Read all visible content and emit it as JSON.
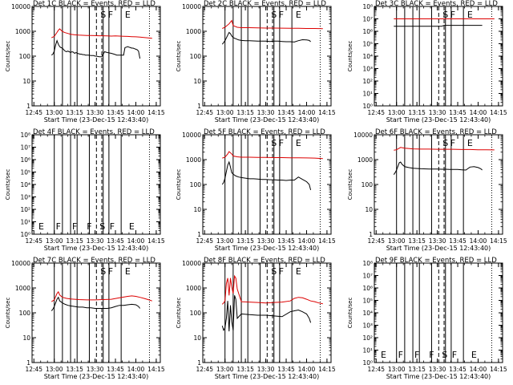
{
  "figure": {
    "xlabel": "Start Time (23-Dec-15 12:43:40)",
    "xticks": [
      "12:45",
      "13:00",
      "13:15",
      "13:30",
      "13:45",
      "14:00",
      "14:15"
    ],
    "ylabel": "Counts/sec"
  },
  "colors": {
    "events": "#000000",
    "lld": "#dd0000",
    "axes": "#000000"
  },
  "chart_data": [
    {
      "type": "line",
      "title": "Det 1C BLACK = Events, RED = LLD",
      "ylabel": "Counts/sec",
      "yscale": "log",
      "ylim": [
        1,
        10000
      ],
      "yticks": [
        "1",
        "10",
        "100",
        "1000",
        "10000"
      ],
      "letters": [
        "S",
        "F",
        "E"
      ],
      "series": [
        {
          "color": "#000000",
          "x": [
            12.967,
            12.983,
            13.0,
            13.017,
            13.033,
            13.05,
            13.067,
            13.083,
            13.1,
            13.117,
            13.133,
            13.15,
            13.167,
            13.183,
            13.2,
            13.217,
            13.233,
            13.25,
            13.267,
            13.283,
            13.3,
            13.317,
            13.333,
            13.35,
            13.367,
            13.383,
            13.417,
            13.45,
            13.483,
            13.5,
            13.517,
            13.55,
            13.583,
            13.617,
            13.65,
            13.7,
            13.733,
            13.767,
            13.8,
            13.833,
            13.85,
            13.867,
            13.883,
            13.9,
            13.917,
            13.933,
            13.95,
            13.967,
            13.983,
            14.0,
            14.017,
            14.033,
            14.05
          ],
          "values": [
            110,
            120,
            160,
            280,
            420,
            300,
            240,
            220,
            210,
            180,
            160,
            150,
            160,
            150,
            140,
            150,
            145,
            130,
            140,
            130,
            125,
            120,
            120,
            115,
            115,
            110,
            110,
            105,
            105,
            100,
            100,
            95,
            95,
            150,
            140,
            130,
            120,
            110,
            110,
            110,
            110,
            220,
            230,
            240,
            230,
            220,
            210,
            210,
            200,
            190,
            180,
            160,
            80
          ]
        },
        {
          "color": "#dd0000",
          "x": [
            12.967,
            13.0,
            13.033,
            13.05,
            13.067,
            13.1,
            13.133,
            13.167,
            13.2,
            13.25,
            13.3,
            13.35,
            13.4,
            13.45,
            13.5,
            13.55,
            13.6,
            13.65,
            13.7,
            13.75,
            13.8,
            13.85,
            13.9,
            13.95,
            14.0,
            14.05,
            14.1,
            14.15,
            14.2
          ],
          "values": [
            550,
            620,
            900,
            1100,
            1250,
            980,
            880,
            820,
            760,
            720,
            700,
            690,
            680,
            680,
            670,
            660,
            660,
            650,
            640,
            650,
            640,
            630,
            620,
            610,
            600,
            580,
            560,
            540,
            520
          ]
        }
      ]
    },
    {
      "type": "line",
      "title": "Det 2C BLACK = Events, RED = LLD",
      "ylabel": "Counts/sec",
      "yscale": "log",
      "ylim": [
        1,
        10000
      ],
      "yticks": [
        "1",
        "10",
        "100",
        "1000",
        "10000"
      ],
      "letters": [
        "S",
        "F",
        "E"
      ],
      "series": [
        {
          "color": "#000000",
          "x": [
            12.967,
            12.983,
            13.0,
            13.033,
            13.05,
            13.067,
            13.083,
            13.1,
            13.133,
            13.167,
            13.2,
            13.25,
            13.3,
            13.35,
            13.4,
            13.45,
            13.5,
            13.55,
            13.6,
            13.65,
            13.7,
            13.75,
            13.8,
            13.85,
            13.9,
            13.95,
            14.0,
            14.033,
            14.05
          ],
          "values": [
            300,
            350,
            420,
            700,
            900,
            800,
            650,
            550,
            500,
            450,
            430,
            420,
            420,
            410,
            400,
            400,
            400,
            390,
            400,
            400,
            390,
            380,
            380,
            370,
            420,
            460,
            450,
            430,
            380
          ]
        },
        {
          "color": "#dd0000",
          "x": [
            12.967,
            13.0,
            13.05,
            13.083,
            13.1,
            13.15,
            13.2,
            13.3,
            13.4,
            13.5,
            13.6,
            13.7,
            13.8,
            13.9,
            14.0,
            14.1,
            14.2
          ],
          "values": [
            1300,
            1450,
            2000,
            2700,
            1700,
            1450,
            1400,
            1400,
            1380,
            1350,
            1350,
            1340,
            1330,
            1320,
            1300,
            1300,
            1280
          ]
        }
      ]
    },
    {
      "type": "line",
      "title": "Det 3C BLACK = Events, RED = LLD",
      "ylabel": "Counts/sec",
      "yscale": "log",
      "ylim": [
        1,
        100000000
      ],
      "yticks": [
        "10⁰",
        "10¹",
        "10²",
        "10³",
        "10⁴",
        "10⁵",
        "10⁶",
        "10⁷",
        "10⁸"
      ],
      "letters": [
        "S",
        "F",
        "E"
      ],
      "series": [
        {
          "color": "#000000",
          "x": [
            12.967,
            13.5,
            13.517,
            13.55,
            13.583,
            13.617,
            14.05
          ],
          "values": [
            2500000,
            2500000,
            2500000,
            2500000,
            3000000,
            3000000,
            3000000
          ]
        },
        {
          "color": "#dd0000",
          "x": [
            12.967,
            13.5,
            14.2
          ],
          "values": [
            10000000,
            10000000,
            10000000
          ]
        }
      ]
    },
    {
      "type": "line",
      "title": "Det 4F BLACK = Events, RED = LLD",
      "ylabel": "Counts/sec",
      "yscale": "log",
      "ylim": [
        1,
        100000000
      ],
      "yticks": [
        "10⁰",
        "10¹",
        "10²",
        "10³",
        "10⁴",
        "10⁵",
        "10⁶",
        "10⁷",
        "10⁸"
      ],
      "letters": [
        "E",
        "F",
        "F",
        "F",
        "S",
        "F",
        "E"
      ],
      "series": []
    },
    {
      "type": "line",
      "title": "Det 5F BLACK = Events, RED = LLD",
      "ylabel": "Counts/sec",
      "yscale": "log",
      "ylim": [
        1,
        10000
      ],
      "yticks": [
        "1",
        "10",
        "100",
        "1000",
        "10000"
      ],
      "letters": [
        "S",
        "F",
        "E"
      ],
      "series": [
        {
          "color": "#000000",
          "x": [
            12.967,
            12.983,
            13.0,
            13.033,
            13.05,
            13.067,
            13.083,
            13.1,
            13.133,
            13.167,
            13.2,
            13.25,
            13.3,
            13.35,
            13.4,
            13.45,
            13.5,
            13.55,
            13.6,
            13.65,
            13.7,
            13.75,
            13.8,
            13.85,
            13.9,
            13.95,
            14.0,
            14.033,
            14.05
          ],
          "values": [
            100,
            120,
            180,
            600,
            800,
            500,
            300,
            260,
            220,
            200,
            190,
            180,
            170,
            170,
            165,
            160,
            160,
            155,
            155,
            150,
            150,
            145,
            150,
            150,
            200,
            160,
            130,
            100,
            60
          ]
        },
        {
          "color": "#dd0000",
          "x": [
            12.967,
            13.0,
            13.033,
            13.05,
            13.083,
            13.1,
            13.15,
            13.2,
            13.3,
            13.4,
            13.5,
            13.6,
            13.7,
            13.8,
            13.9,
            14.0,
            14.1,
            14.2
          ],
          "values": [
            1150,
            1250,
            1700,
            2100,
            1700,
            1400,
            1300,
            1250,
            1250,
            1230,
            1220,
            1200,
            1200,
            1190,
            1180,
            1170,
            1150,
            1100
          ]
        }
      ]
    },
    {
      "type": "line",
      "title": "Det 6F BLACK = Events, RED = LLD",
      "ylabel": "Counts/sec",
      "yscale": "log",
      "ylim": [
        1,
        10000
      ],
      "yticks": [
        "1",
        "10",
        "100",
        "1000",
        "10000"
      ],
      "letters": [
        "S",
        "F",
        "E"
      ],
      "series": [
        {
          "color": "#000000",
          "x": [
            12.967,
            12.983,
            13.0,
            13.033,
            13.05,
            13.067,
            13.1,
            13.15,
            13.2,
            13.3,
            13.4,
            13.5,
            13.55,
            13.6,
            13.65,
            13.7,
            13.75,
            13.8,
            13.85,
            13.9,
            13.95,
            14.0,
            14.033,
            14.05
          ],
          "values": [
            250,
            300,
            380,
            750,
            800,
            650,
            520,
            480,
            450,
            430,
            420,
            420,
            410,
            410,
            400,
            400,
            400,
            390,
            380,
            500,
            520,
            480,
            430,
            380
          ]
        },
        {
          "color": "#dd0000",
          "x": [
            12.967,
            13.0,
            13.05,
            13.1,
            13.2,
            13.3,
            13.4,
            13.5,
            13.6,
            13.7,
            13.8,
            13.9,
            14.0,
            14.1,
            14.2
          ],
          "values": [
            2400,
            2500,
            3100,
            2900,
            2700,
            2650,
            2650,
            2600,
            2600,
            2600,
            2550,
            2550,
            2500,
            2500,
            2450
          ]
        }
      ]
    },
    {
      "type": "line",
      "title": "Det 7C BLACK = Events, RED = LLD",
      "ylabel": "Counts/sec",
      "yscale": "log",
      "ylim": [
        1,
        10000
      ],
      "yticks": [
        "1",
        "10",
        "100",
        "1000",
        "10000"
      ],
      "letters": [
        "S",
        "F",
        "E"
      ],
      "series": [
        {
          "color": "#000000",
          "x": [
            12.967,
            12.983,
            13.0,
            13.033,
            13.05,
            13.067,
            13.1,
            13.133,
            13.167,
            13.2,
            13.25,
            13.3,
            13.35,
            13.4,
            13.45,
            13.5,
            13.55,
            13.6,
            13.65,
            13.7,
            13.75,
            13.8,
            13.85,
            13.9,
            13.95,
            14.0,
            14.033,
            14.05
          ],
          "values": [
            120,
            140,
            180,
            350,
            420,
            300,
            250,
            220,
            200,
            190,
            180,
            170,
            170,
            160,
            160,
            150,
            150,
            150,
            150,
            160,
            180,
            200,
            200,
            210,
            220,
            210,
            180,
            150
          ]
        },
        {
          "color": "#dd0000",
          "x": [
            12.967,
            13.0,
            13.033,
            13.05,
            13.067,
            13.1,
            13.15,
            13.2,
            13.3,
            13.4,
            13.5,
            13.6,
            13.7,
            13.8,
            13.85,
            13.9,
            13.95,
            14.0,
            14.05,
            14.1,
            14.15,
            14.2
          ],
          "values": [
            280,
            330,
            600,
            700,
            520,
            420,
            380,
            360,
            340,
            330,
            330,
            340,
            350,
            400,
            430,
            460,
            480,
            460,
            420,
            380,
            340,
            300
          ]
        }
      ]
    },
    {
      "type": "line",
      "title": "Det 8F BLACK = Events, RED = LLD",
      "ylabel": "Counts/sec",
      "yscale": "log",
      "ylim": [
        1,
        10000
      ],
      "yticks": [
        "1",
        "10",
        "100",
        "1000",
        "10000"
      ],
      "letters": [
        "S",
        "F",
        "E"
      ],
      "series": [
        {
          "color": "#000000",
          "x": [
            12.967,
            12.983,
            13.0,
            13.017,
            13.033,
            13.05,
            13.067,
            13.083,
            13.1,
            13.117,
            13.133,
            13.15,
            13.2,
            13.3,
            13.4,
            13.5,
            13.6,
            13.7,
            13.8,
            13.85,
            13.9,
            13.95,
            14.0,
            14.033,
            14.05
          ],
          "values": [
            30,
            20,
            25,
            60,
            300,
            18,
            200,
            45,
            20,
            500,
            350,
            60,
            90,
            85,
            80,
            80,
            75,
            70,
            110,
            120,
            130,
            110,
            90,
            60,
            40
          ]
        },
        {
          "color": "#dd0000",
          "x": [
            12.967,
            12.983,
            13.0,
            13.017,
            13.033,
            13.05,
            13.067,
            13.083,
            13.1,
            13.117,
            13.133,
            13.15,
            13.2,
            13.3,
            13.4,
            13.5,
            13.6,
            13.7,
            13.8,
            13.85,
            13.9,
            13.95,
            14.0,
            14.05,
            14.1,
            14.15,
            14.2
          ],
          "values": [
            220,
            250,
            300,
            1500,
            2500,
            500,
            2500,
            1100,
            600,
            3000,
            2500,
            900,
            280,
            270,
            260,
            250,
            260,
            270,
            300,
            380,
            420,
            400,
            350,
            300,
            280,
            250,
            230
          ]
        }
      ]
    },
    {
      "type": "line",
      "title": "Det 9F BLACK = Events, RED = LLD",
      "ylabel": "Counts/sec",
      "yscale": "log",
      "ylim": [
        1,
        100000000
      ],
      "yticks": [
        "10⁰",
        "10¹",
        "10²",
        "10³",
        "10⁴",
        "10⁵",
        "10⁶",
        "10⁷",
        "10⁸"
      ],
      "letters": [
        "E",
        "F",
        "F",
        "F",
        "S",
        "F",
        "E"
      ],
      "series": []
    }
  ]
}
